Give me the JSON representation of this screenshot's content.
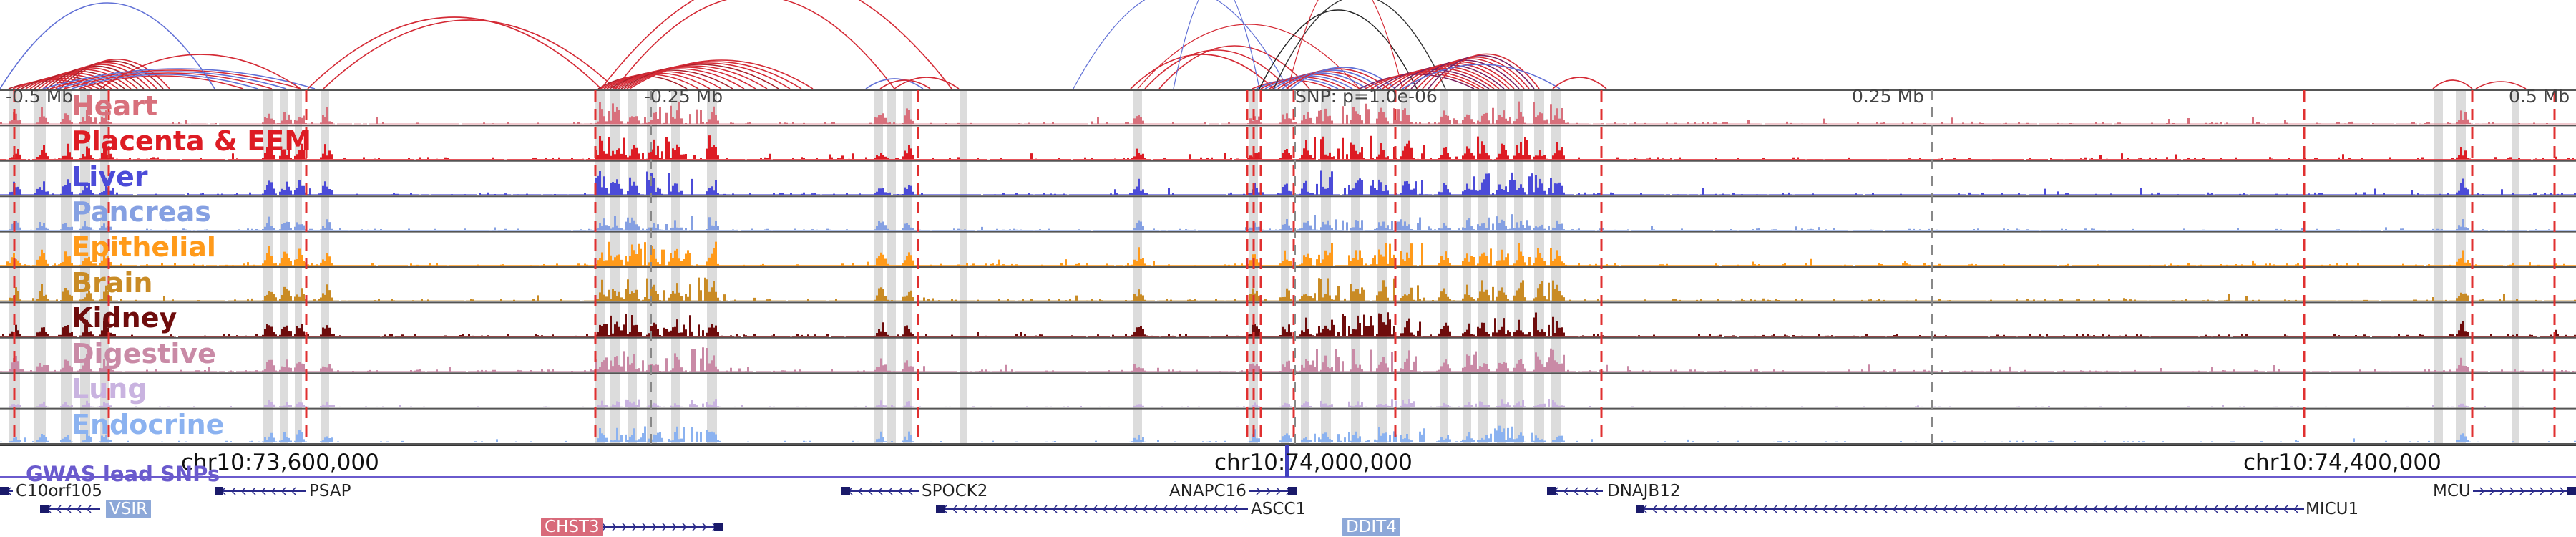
{
  "colors": {
    "heart": "#d8707c",
    "placenta": "#dd1c24",
    "liver": "#4b4bd8",
    "pancreas": "#85a0e2",
    "epithelial": "#ff9a1a",
    "brain": "#c98b25",
    "kidney": "#6e0c0c",
    "digestive": "#c98aa6",
    "lung": "#c9b3e0",
    "endocrine": "#8bb2f0",
    "arc_red": "#d42a35",
    "arc_blue": "#6070d6",
    "highlight": "#dcdcdc",
    "snp_line": "#e03030"
  },
  "tracks": [
    {
      "key": "heart",
      "label": "Heart"
    },
    {
      "key": "placenta",
      "label": "Placenta & EEM"
    },
    {
      "key": "liver",
      "label": "Liver"
    },
    {
      "key": "pancreas",
      "label": "Pancreas"
    },
    {
      "key": "epithelial",
      "label": "Epithelial"
    },
    {
      "key": "brain",
      "label": "Brain"
    },
    {
      "key": "kidney",
      "label": "Kidney"
    },
    {
      "key": "digestive",
      "label": "Digestive"
    },
    {
      "key": "lung",
      "label": "Lung"
    },
    {
      "key": "endocrine",
      "label": "Endocrine"
    }
  ],
  "distance_labels": {
    "left_far": "-0.5 Mb",
    "left_near": "-0.25 Mb",
    "snp": "SNP: p=1.0e-06",
    "right_near": "0.25 Mb",
    "right_far": "0.5 Mb"
  },
  "coordinates": {
    "left": "chr10:73,600,000",
    "center": "chr10:74,000,000",
    "right": "chr10:74,400,000"
  },
  "gwas_label": "GWAS lead SNPs",
  "genes": {
    "c10orf105": "C10orf105",
    "vsir": "VSIR",
    "psap": "PSAP",
    "chst3": "CHST3",
    "spock2": "SPOCK2",
    "anapc16": "ANAPC16",
    "ascc1": "ASCC1",
    "ddit4": "DDIT4",
    "dnajb12": "DNAJB12",
    "micu1": "MICU1",
    "mcu": "MCU"
  }
}
